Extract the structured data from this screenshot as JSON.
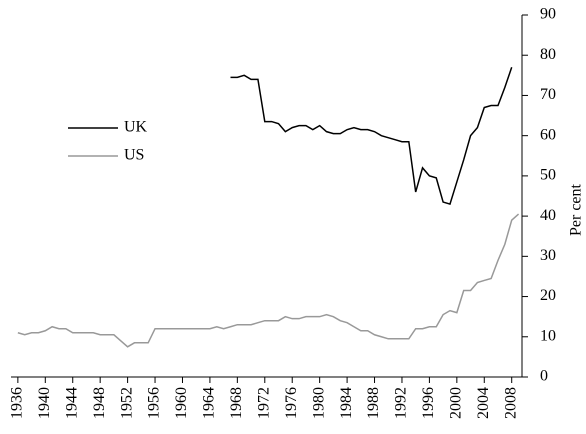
{
  "chart_data": {
    "type": "line",
    "y_label": "Per cent",
    "x": [
      1936,
      1937,
      1938,
      1939,
      1940,
      1941,
      1942,
      1943,
      1944,
      1945,
      1946,
      1947,
      1948,
      1949,
      1950,
      1951,
      1952,
      1953,
      1954,
      1955,
      1956,
      1957,
      1958,
      1959,
      1960,
      1961,
      1962,
      1963,
      1964,
      1965,
      1966,
      1967,
      1968,
      1969,
      1970,
      1971,
      1972,
      1973,
      1974,
      1975,
      1976,
      1977,
      1978,
      1979,
      1980,
      1981,
      1982,
      1983,
      1984,
      1985,
      1986,
      1987,
      1988,
      1989,
      1990,
      1991,
      1992,
      1993,
      1994,
      1995,
      1996,
      1997,
      1998,
      1999,
      2000,
      2001,
      2002,
      2003,
      2004,
      2005,
      2006,
      2007,
      2008,
      2009
    ],
    "series": [
      {
        "name": "UK",
        "color": "#000000",
        "values": [
          null,
          null,
          null,
          null,
          null,
          null,
          null,
          null,
          null,
          null,
          null,
          null,
          null,
          null,
          null,
          null,
          null,
          null,
          null,
          null,
          null,
          null,
          null,
          null,
          null,
          null,
          null,
          null,
          null,
          null,
          null,
          74.5,
          74.5,
          75,
          74,
          74,
          63.5,
          63.5,
          63,
          61,
          62,
          62.5,
          62.5,
          61.5,
          62.5,
          61,
          60.5,
          60.5,
          61.5,
          62,
          61.5,
          61.5,
          61,
          60,
          59.5,
          59,
          58.5,
          58.5,
          46,
          52,
          50,
          49.5,
          43.5,
          43,
          48.5,
          54,
          60,
          62,
          67,
          67.5,
          67.5,
          72,
          77,
          null
        ]
      },
      {
        "name": "US",
        "color": "#999999",
        "values": [
          11,
          10.5,
          11,
          11,
          11.5,
          12.5,
          12,
          12,
          11,
          11,
          11,
          11,
          10.5,
          10.5,
          10.5,
          9,
          7.5,
          8.5,
          8.5,
          8.5,
          12,
          12,
          12,
          12,
          12,
          12,
          12,
          12,
          12,
          12.5,
          12,
          12.5,
          13,
          13,
          13,
          13.5,
          14,
          14,
          14,
          15,
          14.5,
          14.5,
          15,
          15,
          15,
          15.5,
          15,
          14,
          13.5,
          12.5,
          11.5,
          11.5,
          10.5,
          10,
          9.5,
          9.5,
          9.5,
          9.5,
          12,
          12,
          12.5,
          12.5,
          15.5,
          16.5,
          16,
          21.5,
          21.5,
          23.5,
          24,
          24.5,
          29,
          33,
          39,
          40.5
        ]
      }
    ],
    "xlim": [
      1935,
      2009.5
    ],
    "xticks": [
      1936,
      1940,
      1944,
      1948,
      1952,
      1956,
      1960,
      1964,
      1968,
      1972,
      1976,
      1980,
      1984,
      1988,
      1992,
      1996,
      2000,
      2004,
      2008
    ],
    "ylim": [
      0,
      90
    ],
    "yticks": [
      0,
      10,
      20,
      30,
      40,
      50,
      60,
      70,
      80,
      90
    ],
    "grid": false
  }
}
